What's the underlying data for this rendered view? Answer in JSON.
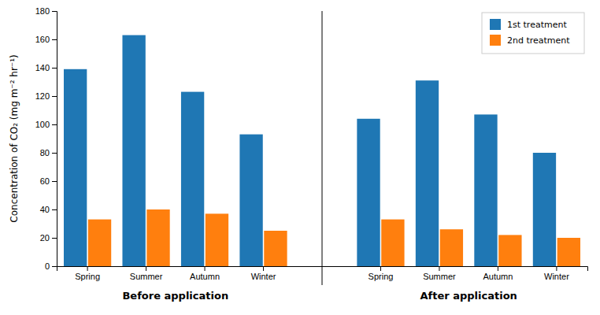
{
  "chart_data": {
    "type": "bar",
    "y_label": "Concentration of CO₂ (mg m⁻² hr⁻¹)",
    "categories": [
      "Spring",
      "Summer",
      "Autumn",
      "Winter",
      "Spring",
      "Summer",
      "Autumn",
      "Winter"
    ],
    "annotations": [
      "Before application",
      "After application"
    ],
    "series": [
      {
        "name": "1st treatment",
        "values": [
          139,
          163,
          123,
          93,
          104,
          131,
          107,
          80
        ]
      },
      {
        "name": "2nd treatment",
        "values": [
          33,
          40,
          37,
          25,
          33,
          26,
          22,
          20
        ]
      }
    ],
    "ylim": [
      0,
      180
    ],
    "yticks": [
      0,
      20,
      40,
      60,
      80,
      100,
      120,
      140,
      160,
      180
    ],
    "legend": "upper right",
    "grid": false
  }
}
